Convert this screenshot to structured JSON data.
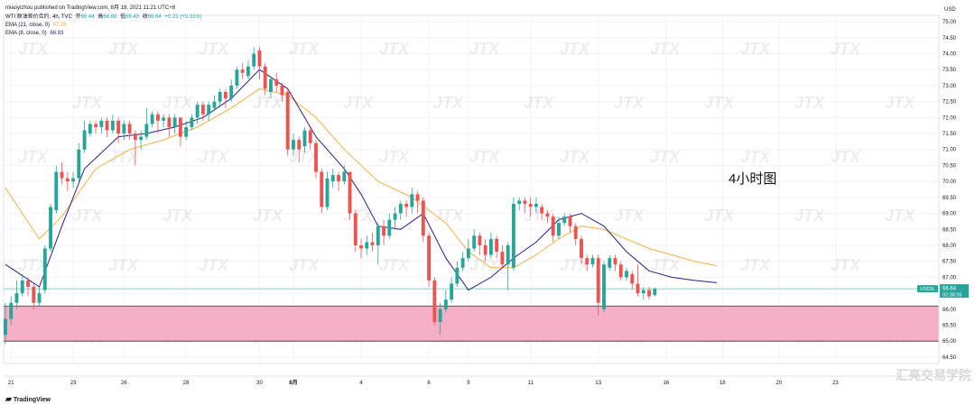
{
  "header": {
    "published": "miaoyizhou published on TradingView.com, 8月 18, 2021 11:21 UTC+8",
    "symbol": "WTI 原油差价合约, 4h, TVC",
    "ohlc": {
      "open_label": "开",
      "open": "66.44",
      "high_label": "高",
      "high": "66.68",
      "low_label": "低",
      "low": "66.40",
      "close_label": "收",
      "close": "66.64",
      "change": "+0.21 (+0.31%)"
    },
    "ema21": {
      "label": "EMA (21, close, 0)",
      "value": "67.36"
    },
    "ema8": {
      "label": "EMA (8, close, 0)",
      "value": "66.83"
    }
  },
  "annotation": "4小时图",
  "watermark_text": "JTX",
  "price_tag": {
    "symbol": "USOIL",
    "price": "66.64",
    "timer": "02:38:26"
  },
  "footer": {
    "brand": "TradingView",
    "right_watermark": "汇亮交易学院"
  },
  "colors": {
    "up": "#26a69a",
    "down": "#ef5350",
    "ema21": "#f5b041",
    "ema8": "#2e1a8c",
    "zone_fill": "#f4a6c0",
    "zone_border": "#333333",
    "price_line": "#26a69a"
  },
  "chart_data": {
    "type": "candlestick",
    "y_axis": {
      "unit": "USD",
      "ticks": [
        "75.00",
        "74.50",
        "74.00",
        "73.50",
        "73.00",
        "72.50",
        "72.00",
        "71.50",
        "71.00",
        "70.50",
        "70.00",
        "69.50",
        "69.00",
        "68.50",
        "68.00",
        "67.50",
        "67.00",
        "66.50",
        "66.00",
        "65.50",
        "65.00",
        "64.50"
      ],
      "range": [
        64.3,
        75.2
      ]
    },
    "x_axis": {
      "ticks": [
        "21",
        "23",
        "26",
        "28",
        "30",
        "8月",
        "4",
        "6",
        "9",
        "11",
        "13",
        "16",
        "18",
        "20",
        "23"
      ],
      "tick_index": [
        1,
        12,
        21,
        32,
        45,
        51,
        63,
        75,
        82,
        93,
        105,
        117,
        127,
        137,
        147
      ],
      "index_range": [
        0,
        165
      ]
    },
    "support_zone": {
      "low": 65.0,
      "high": 66.1
    },
    "last_price": 66.64,
    "candles": [
      [
        65.7,
        65.2,
        66.2,
        64.9
      ],
      [
        66.2,
        65.7,
        66.4,
        65.5
      ],
      [
        66.5,
        66.2,
        66.9,
        66.0
      ],
      [
        66.9,
        66.5,
        67.1,
        66.4
      ],
      [
        66.7,
        66.9,
        67.0,
        66.4
      ],
      [
        66.2,
        66.7,
        66.8,
        66.0
      ],
      [
        66.5,
        66.2,
        66.7,
        66.1
      ],
      [
        67.9,
        66.6,
        68.0,
        66.5
      ],
      [
        69.2,
        67.9,
        69.3,
        67.8
      ],
      [
        70.3,
        69.1,
        70.5,
        69.0
      ],
      [
        70.1,
        70.3,
        70.6,
        69.9
      ],
      [
        70.0,
        70.1,
        70.3,
        69.7
      ],
      [
        70.1,
        70.0,
        70.3,
        69.8
      ],
      [
        71.0,
        70.1,
        71.2,
        70.0
      ],
      [
        71.6,
        71.0,
        71.9,
        70.9
      ],
      [
        71.8,
        71.5,
        71.9,
        71.4
      ],
      [
        71.7,
        71.8,
        71.9,
        71.5
      ],
      [
        71.9,
        71.7,
        72.0,
        71.5
      ],
      [
        71.6,
        71.9,
        72.0,
        71.4
      ],
      [
        71.9,
        71.6,
        72.1,
        71.5
      ],
      [
        71.5,
        71.9,
        72.0,
        71.2
      ],
      [
        71.8,
        71.5,
        71.9,
        71.3
      ],
      [
        71.5,
        71.8,
        71.9,
        71.3
      ],
      [
        71.3,
        71.5,
        71.6,
        70.5
      ],
      [
        71.4,
        71.3,
        71.6,
        71.0
      ],
      [
        71.8,
        71.4,
        72.3,
        71.3
      ],
      [
        72.1,
        71.8,
        72.2,
        71.7
      ],
      [
        71.9,
        72.1,
        72.2,
        71.5
      ],
      [
        72.0,
        71.9,
        72.1,
        71.7
      ],
      [
        71.7,
        72.0,
        72.1,
        71.4
      ],
      [
        72.0,
        71.7,
        72.1,
        71.5
      ],
      [
        71.4,
        72.0,
        72.0,
        71.1
      ],
      [
        71.7,
        71.4,
        71.9,
        71.3
      ],
      [
        72.0,
        71.7,
        72.1,
        71.6
      ],
      [
        72.4,
        72.0,
        72.5,
        71.8
      ],
      [
        72.1,
        72.4,
        72.5,
        71.9
      ],
      [
        72.4,
        72.1,
        72.5,
        71.9
      ],
      [
        72.5,
        72.3,
        72.7,
        72.2
      ],
      [
        72.8,
        72.5,
        72.9,
        72.3
      ],
      [
        72.6,
        72.8,
        72.9,
        72.3
      ],
      [
        73.0,
        72.6,
        73.2,
        72.5
      ],
      [
        73.5,
        73.0,
        73.6,
        72.9
      ],
      [
        73.4,
        73.5,
        73.7,
        73.2
      ],
      [
        73.6,
        73.3,
        73.8,
        73.2
      ],
      [
        74.0,
        73.6,
        74.2,
        73.5
      ],
      [
        73.6,
        74.1,
        74.2,
        73.2
      ],
      [
        72.9,
        73.6,
        73.7,
        72.7
      ],
      [
        73.2,
        72.8,
        73.3,
        72.6
      ],
      [
        73.0,
        73.2,
        73.4,
        72.8
      ],
      [
        72.7,
        73.0,
        73.1,
        72.5
      ],
      [
        71.0,
        72.8,
        72.9,
        70.8
      ],
      [
        71.3,
        71.0,
        71.5,
        70.8
      ],
      [
        71.0,
        71.3,
        71.4,
        70.6
      ],
      [
        71.6,
        71.1,
        71.7,
        70.9
      ],
      [
        71.2,
        71.6,
        71.7,
        71.0
      ],
      [
        70.3,
        71.2,
        71.3,
        70.1
      ],
      [
        69.2,
        70.3,
        70.4,
        69.0
      ],
      [
        70.1,
        69.2,
        70.3,
        69.1
      ],
      [
        70.2,
        70.0,
        70.4,
        69.8
      ],
      [
        70.0,
        70.2,
        70.3,
        69.7
      ],
      [
        70.3,
        70.0,
        70.5,
        69.9
      ],
      [
        69.0,
        70.3,
        70.3,
        68.8
      ],
      [
        68.0,
        69.0,
        69.1,
        67.8
      ],
      [
        67.9,
        68.0,
        68.2,
        67.6
      ],
      [
        68.1,
        67.9,
        68.3,
        67.7
      ],
      [
        68.0,
        68.1,
        68.4,
        67.8
      ],
      [
        68.6,
        68.0,
        68.7,
        67.4
      ],
      [
        68.3,
        68.6,
        68.8,
        68.0
      ],
      [
        68.8,
        68.3,
        69.0,
        68.2
      ],
      [
        69.0,
        68.8,
        69.2,
        68.5
      ],
      [
        69.3,
        69.0,
        69.4,
        68.8
      ],
      [
        69.2,
        69.3,
        69.4,
        68.9
      ],
      [
        69.6,
        69.2,
        69.8,
        69.0
      ],
      [
        69.4,
        69.6,
        69.7,
        69.0
      ],
      [
        68.3,
        69.4,
        69.5,
        68.1
      ],
      [
        66.9,
        68.3,
        68.4,
        66.7
      ],
      [
        65.6,
        66.9,
        67.0,
        65.5
      ],
      [
        66.0,
        65.6,
        66.2,
        65.2
      ],
      [
        66.3,
        66.0,
        66.6,
        65.9
      ],
      [
        66.8,
        66.3,
        67.0,
        66.2
      ],
      [
        67.3,
        66.8,
        67.5,
        66.7
      ],
      [
        67.6,
        67.3,
        67.8,
        67.2
      ],
      [
        67.9,
        67.6,
        68.2,
        67.5
      ],
      [
        68.3,
        67.9,
        68.5,
        67.8
      ],
      [
        68.0,
        68.3,
        68.4,
        67.7
      ],
      [
        67.7,
        68.0,
        68.2,
        67.5
      ],
      [
        68.2,
        67.7,
        68.4,
        67.6
      ],
      [
        67.8,
        68.2,
        68.3,
        67.6
      ],
      [
        67.4,
        67.8,
        68.0,
        67.3
      ],
      [
        68.0,
        67.4,
        68.1,
        66.6
      ],
      [
        69.3,
        67.3,
        69.5,
        67.2
      ],
      [
        69.4,
        69.3,
        69.5,
        69.1
      ],
      [
        69.3,
        69.4,
        69.5,
        69.0
      ],
      [
        69.2,
        69.3,
        69.5,
        68.9
      ],
      [
        69.3,
        69.2,
        69.5,
        69.0
      ],
      [
        69.0,
        69.2,
        69.3,
        68.8
      ],
      [
        68.9,
        69.0,
        69.1,
        68.7
      ],
      [
        68.3,
        68.9,
        69.0,
        68.1
      ],
      [
        68.7,
        68.3,
        68.9,
        68.2
      ],
      [
        68.9,
        68.7,
        69.0,
        68.6
      ],
      [
        68.6,
        68.9,
        69.0,
        68.4
      ],
      [
        68.2,
        68.6,
        68.7,
        68.0
      ],
      [
        67.6,
        68.2,
        68.3,
        67.4
      ],
      [
        67.4,
        67.6,
        67.7,
        67.2
      ],
      [
        67.6,
        67.4,
        67.7,
        67.3
      ],
      [
        66.2,
        67.6,
        67.7,
        65.8
      ],
      [
        67.4,
        66.0,
        67.5,
        65.9
      ],
      [
        67.6,
        67.3,
        67.7,
        67.2
      ],
      [
        67.4,
        67.6,
        67.7,
        67.2
      ],
      [
        67.0,
        67.4,
        67.5,
        66.9
      ],
      [
        67.2,
        67.0,
        67.3,
        66.9
      ],
      [
        66.8,
        67.1,
        67.2,
        66.6
      ],
      [
        66.5,
        66.8,
        67.4,
        66.4
      ],
      [
        66.6,
        66.5,
        66.7,
        66.3
      ],
      [
        66.4,
        66.6,
        66.7,
        66.3
      ],
      [
        66.64,
        66.44,
        66.68,
        66.4
      ]
    ],
    "ema8": [
      [
        0,
        67.4
      ],
      [
        6,
        66.7
      ],
      [
        10,
        68.6
      ],
      [
        14,
        70.4
      ],
      [
        20,
        71.4
      ],
      [
        25,
        71.5
      ],
      [
        30,
        71.7
      ],
      [
        35,
        72.0
      ],
      [
        40,
        72.6
      ],
      [
        45,
        73.5
      ],
      [
        50,
        72.9
      ],
      [
        55,
        71.4
      ],
      [
        60,
        70.4
      ],
      [
        63,
        69.6
      ],
      [
        66,
        68.6
      ],
      [
        70,
        68.5
      ],
      [
        74,
        69.0
      ],
      [
        78,
        67.6
      ],
      [
        82,
        66.6
      ],
      [
        86,
        67.0
      ],
      [
        90,
        67.6
      ],
      [
        94,
        68.1
      ],
      [
        98,
        68.8
      ],
      [
        102,
        69.0
      ],
      [
        106,
        68.6
      ],
      [
        110,
        67.8
      ],
      [
        114,
        67.2
      ],
      [
        118,
        67.0
      ],
      [
        122,
        66.9
      ],
      [
        126,
        66.83
      ]
    ],
    "ema21": [
      [
        0,
        69.8
      ],
      [
        6,
        68.2
      ],
      [
        10,
        68.9
      ],
      [
        16,
        70.4
      ],
      [
        22,
        71.0
      ],
      [
        28,
        71.3
      ],
      [
        34,
        71.7
      ],
      [
        40,
        72.3
      ],
      [
        45,
        72.9
      ],
      [
        50,
        72.7
      ],
      [
        55,
        72.0
      ],
      [
        60,
        71.0
      ],
      [
        66,
        70.0
      ],
      [
        72,
        69.5
      ],
      [
        78,
        68.7
      ],
      [
        82,
        67.8
      ],
      [
        86,
        67.3
      ],
      [
        90,
        67.3
      ],
      [
        94,
        67.7
      ],
      [
        98,
        68.2
      ],
      [
        102,
        68.6
      ],
      [
        106,
        68.5
      ],
      [
        110,
        68.2
      ],
      [
        114,
        67.9
      ],
      [
        118,
        67.7
      ],
      [
        122,
        67.5
      ],
      [
        126,
        67.36
      ]
    ]
  }
}
